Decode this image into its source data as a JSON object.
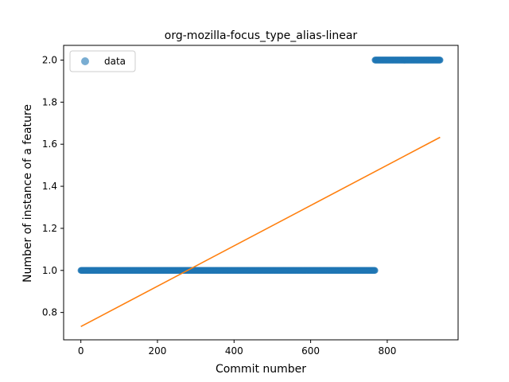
{
  "chart_data": {
    "type": "scatter",
    "title": "org-mozilla-focus_type_alias-linear",
    "xlabel": "Commit number",
    "ylabel": "Number of instance of a feature",
    "xlim": [
      -45,
      985
    ],
    "ylim": [
      0.67,
      2.07
    ],
    "xticks": [
      0,
      200,
      400,
      600,
      800
    ],
    "yticks": [
      0.8,
      1.0,
      1.2,
      1.4,
      1.6,
      1.8,
      2.0
    ],
    "xtick_labels": [
      "0",
      "200",
      "400",
      "600",
      "800"
    ],
    "ytick_labels": [
      "0.8",
      "1.0",
      "1.2",
      "1.4",
      "1.6",
      "1.8",
      "2.0"
    ],
    "legend": {
      "placement": "top-left",
      "entries": [
        "data"
      ]
    },
    "grid": false,
    "series": [
      {
        "name": "data",
        "kind": "scatter",
        "color": "#1f77b4",
        "segments": [
          {
            "x_start": 0,
            "x_end": 768,
            "y": 1.0
          },
          {
            "x_start": 768,
            "x_end": 938,
            "y": 2.0
          }
        ]
      },
      {
        "kind": "line",
        "color": "#ff7f0e",
        "x": [
          0,
          938
        ],
        "y": [
          0.733,
          1.633
        ]
      }
    ]
  }
}
